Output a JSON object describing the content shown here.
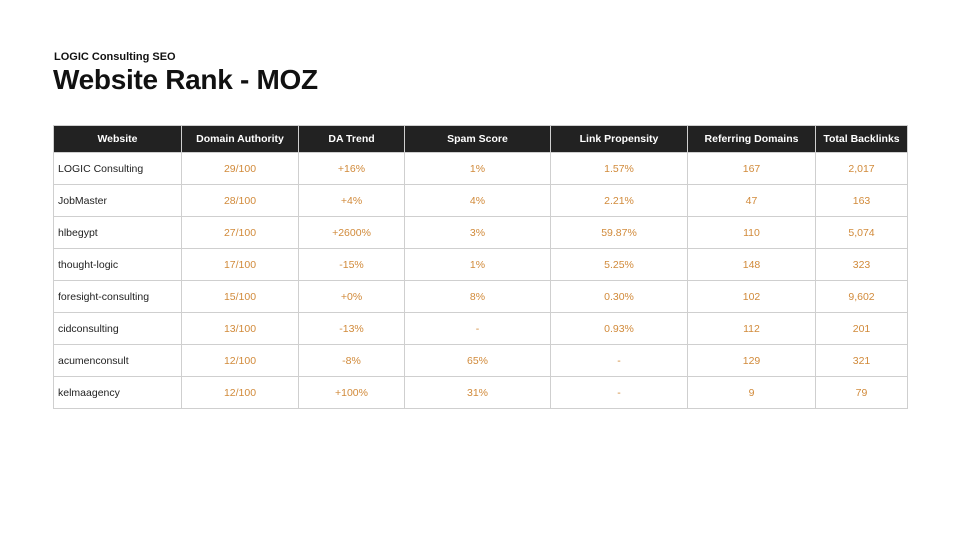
{
  "header": {
    "kicker": "LOGIC Consulting SEO",
    "title": "Website Rank - MOZ"
  },
  "table": {
    "columns": [
      "Website",
      "Domain Authority",
      "DA Trend",
      "Spam Score",
      "Link Propensity",
      "Referring Domains",
      "Total Backlinks"
    ],
    "rows": [
      [
        "LOGIC Consulting",
        "29/100",
        "+16%",
        "1%",
        "1.57%",
        "167",
        "2,017"
      ],
      [
        "JobMaster",
        "28/100",
        "+4%",
        "4%",
        "2.21%",
        "47",
        "163"
      ],
      [
        "hlbegypt",
        "27/100",
        "+2600%",
        "3%",
        "59.87%",
        "110",
        "5,074"
      ],
      [
        "thought-logic",
        "17/100",
        "-15%",
        "1%",
        "5.25%",
        "148",
        "323"
      ],
      [
        "foresight-consulting",
        "15/100",
        "+0%",
        "8%",
        "0.30%",
        "102",
        "9,602"
      ],
      [
        "cidconsulting",
        "13/100",
        "-13%",
        "-",
        "0.93%",
        "112",
        "201"
      ],
      [
        "acumenconsult",
        "12/100",
        "-8%",
        "65%",
        "-",
        "129",
        "321"
      ],
      [
        "kelmaagency",
        "12/100",
        "+100%",
        "31%",
        "-",
        "9",
        "79"
      ]
    ]
  },
  "colors": {
    "header_bg": "#222222",
    "value_text": "#d18a3a",
    "site_text": "#222222",
    "grid": "#cfcfcf"
  }
}
